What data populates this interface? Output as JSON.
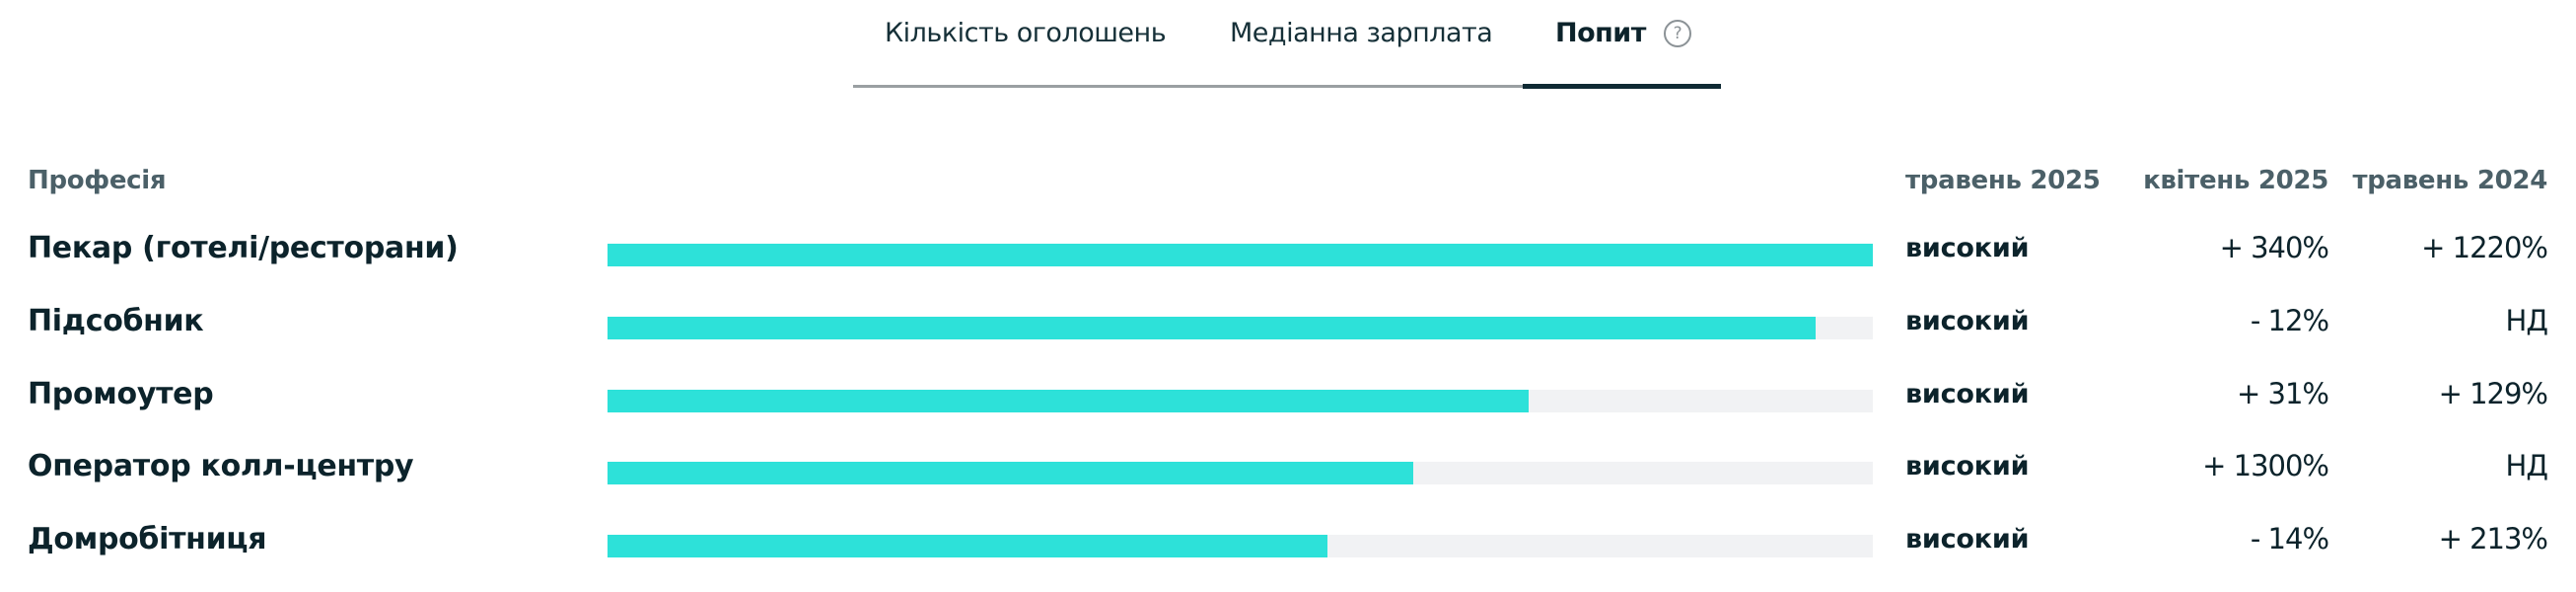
{
  "tabs": [
    {
      "label": "Кількість оголошень",
      "active": false
    },
    {
      "label": "Медіанна зарплата",
      "active": false
    },
    {
      "label": "Попит",
      "active": true,
      "icon": "help-circle-icon",
      "icon_glyph": "?"
    }
  ],
  "table": {
    "headers": {
      "profession": "Професія",
      "current": "травень 2025",
      "prev_month": "квітень 2025",
      "prev_year": "травень 2024"
    },
    "rows": [
      {
        "profession": "Пекар (готелі/ресторани)",
        "bar_pct": 100,
        "level": "високий",
        "prev_month": "+ 340%",
        "prev_year": "+ 1220%"
      },
      {
        "profession": "Підсобник",
        "bar_pct": 95.5,
        "level": "високий",
        "prev_month": "- 12%",
        "prev_year": "НД"
      },
      {
        "profession": "Промоутер",
        "bar_pct": 72.8,
        "level": "високий",
        "prev_month": "+ 31%",
        "prev_year": "+ 129%"
      },
      {
        "profession": "Оператор колл-центру",
        "bar_pct": 63.7,
        "level": "високий",
        "prev_month": "+ 1300%",
        "prev_year": "НД"
      },
      {
        "profession": "Домробітниця",
        "bar_pct": 56.9,
        "level": "високий",
        "prev_month": "- 14%",
        "prev_year": "+ 213%"
      }
    ]
  },
  "colors": {
    "bar_fill": "#2de1d9",
    "bar_track": "#f1f2f4",
    "text_primary": "#0c232b",
    "header_text": "#4b6068",
    "tab_active_underline": "#0f2a33",
    "tab_line": "#9a9fa2"
  }
}
